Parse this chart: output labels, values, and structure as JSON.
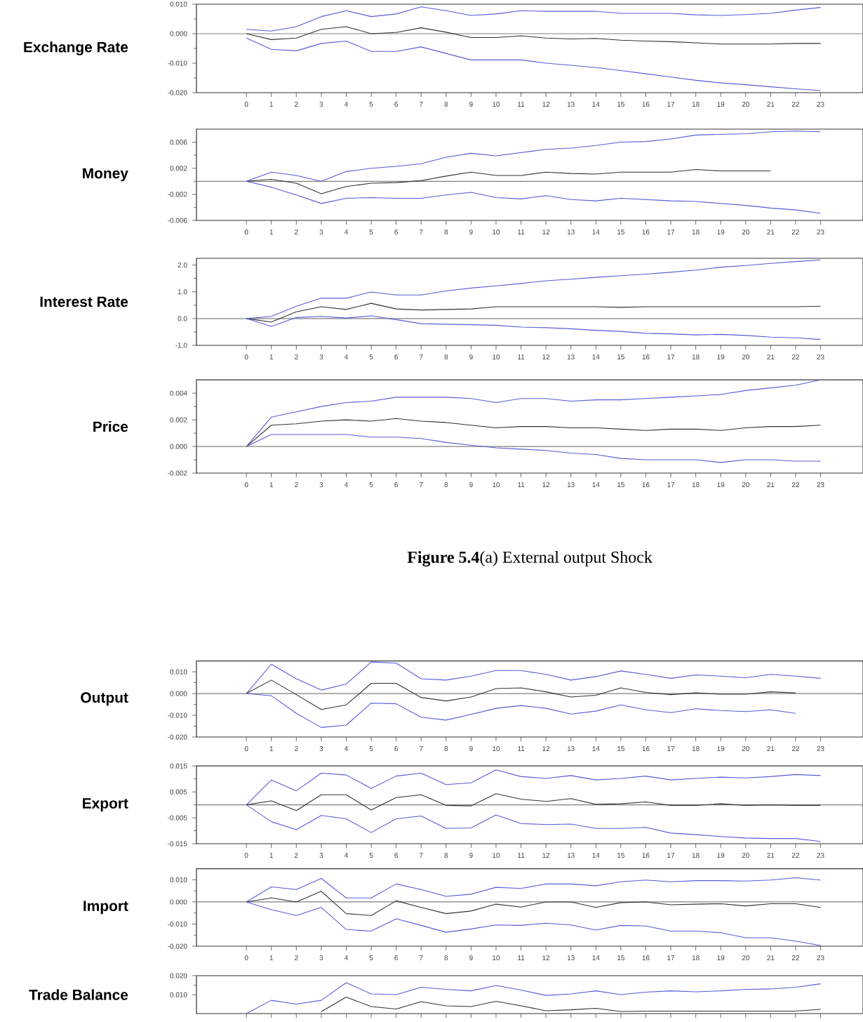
{
  "chart_data": [
    {
      "type": "line",
      "ylabel": "Exchange Rate",
      "x": [
        0,
        1,
        2,
        3,
        4,
        5,
        6,
        7,
        8,
        9,
        10,
        11,
        12,
        13,
        14,
        15,
        16,
        17,
        18,
        19,
        20,
        21,
        22,
        23
      ],
      "xlim": [
        -2,
        24.7
      ],
      "xticks": [
        0,
        1,
        2,
        3,
        4,
        5,
        6,
        7,
        8,
        9,
        10,
        11,
        12,
        13,
        14,
        15,
        16,
        17,
        18,
        19,
        20,
        21,
        22,
        23
      ],
      "ylim": [
        -0.02,
        0.01
      ],
      "yticks": [
        {
          "value": -0.02,
          "label": "-0.020"
        },
        {
          "value": -0.01,
          "label": "-0.010"
        },
        {
          "value": 0.0,
          "label": "0.000"
        },
        {
          "value": 0.01,
          "label": "0.010"
        }
      ],
      "ref_lines": [
        {
          "axis": "y",
          "value": 0,
          "color": "#808080"
        }
      ],
      "series": [
        {
          "color": "#5a5ad8",
          "values": [
            0.0015,
            0.0009,
            0.0024,
            0.0058,
            0.0078,
            0.0058,
            0.0067,
            0.0091,
            0.0078,
            0.0062,
            0.0067,
            0.0078,
            0.0076,
            0.0076,
            0.0076,
            0.0069,
            0.0069,
            0.0069,
            0.0064,
            0.0062,
            0.0065,
            0.0069,
            0.008,
            0.0089
          ]
        },
        {
          "color": "#333333",
          "values": [
            0,
            -0.002,
            -0.0015,
            0.0015,
            0.0024,
            0,
            0.0004,
            0.002,
            0.0005,
            -0.0013,
            -0.0013,
            -0.0007,
            -0.0015,
            -0.0018,
            -0.0016,
            -0.0022,
            -0.0025,
            -0.0027,
            -0.0031,
            -0.0035,
            -0.0035,
            -0.0035,
            -0.0033,
            -0.0033
          ]
        },
        {
          "color": "#5a5ad8",
          "values": [
            -0.0015,
            -0.0053,
            -0.0058,
            -0.0033,
            -0.0025,
            -0.006,
            -0.006,
            -0.0045,
            -0.0067,
            -0.0089,
            -0.0089,
            -0.0089,
            -0.01,
            -0.0107,
            -0.0115,
            -0.0125,
            -0.0136,
            -0.0147,
            -0.0158,
            -0.0167,
            -0.0173,
            -0.018,
            -0.0187,
            -0.0193
          ]
        }
      ]
    },
    {
      "type": "line",
      "ylabel": "Money",
      "x": [
        0,
        1,
        2,
        3,
        4,
        5,
        6,
        7,
        8,
        9,
        10,
        11,
        12,
        13,
        14,
        15,
        16,
        17,
        18,
        19,
        20,
        21,
        22,
        23
      ],
      "xlim": [
        -2,
        24.7
      ],
      "xticks": [
        0,
        1,
        2,
        3,
        4,
        5,
        6,
        7,
        8,
        9,
        10,
        11,
        12,
        13,
        14,
        15,
        16,
        17,
        18,
        19,
        20,
        21,
        22,
        23
      ],
      "ylim": [
        -0.006,
        0.008
      ],
      "yticks": [
        {
          "value": -0.006,
          "label": "-0.006"
        },
        {
          "value": -0.002,
          "label": "-0.002"
        },
        {
          "value": 0.002,
          "label": "0.002"
        },
        {
          "value": 0.006,
          "label": "0.006"
        }
      ],
      "ref_lines": [
        {
          "axis": "y",
          "value": 0,
          "color": "#808080"
        }
      ],
      "series": [
        {
          "color": "#5a5ad8",
          "values": [
            0,
            0.0014,
            0.0009,
            0,
            0.0015,
            0.002,
            0.0023,
            0.0027,
            0.0037,
            0.0043,
            0.0039,
            0.0044,
            0.0049,
            0.0051,
            0.0055,
            0.006,
            0.0061,
            0.0065,
            0.0071,
            0.0072,
            0.0073,
            0.0076,
            0.0077,
            0.0076
          ]
        },
        {
          "color": "#333333",
          "values": [
            0,
            0.0003,
            -0.0003,
            -0.0019,
            -0.0008,
            -0.0003,
            -0.0002,
            0.0001,
            0.0008,
            0.0014,
            0.0009,
            0.0009,
            0.0014,
            0.0012,
            0.0011,
            0.0014,
            0.0014,
            0.0014,
            0.0018,
            0.0016,
            0.0016,
            0.0016,
            null,
            null
          ]
        },
        {
          "color": "#5a5ad8",
          "values": [
            0,
            -0.0009,
            -0.0021,
            -0.0034,
            -0.0026,
            -0.0025,
            -0.0026,
            -0.0026,
            -0.0021,
            -0.0017,
            -0.0025,
            -0.0027,
            -0.0022,
            -0.0028,
            -0.003,
            -0.0026,
            -0.0028,
            -0.003,
            -0.0031,
            -0.0034,
            -0.0037,
            -0.0041,
            -0.0044,
            -0.0049
          ]
        }
      ]
    },
    {
      "type": "line",
      "ylabel": "Interest Rate",
      "x": [
        0,
        1,
        2,
        3,
        4,
        5,
        6,
        7,
        8,
        9,
        10,
        11,
        12,
        13,
        14,
        15,
        16,
        17,
        18,
        19,
        20,
        21,
        22,
        23
      ],
      "xlim": [
        -2,
        24.7
      ],
      "xticks": [
        0,
        1,
        2,
        3,
        4,
        5,
        6,
        7,
        8,
        9,
        10,
        11,
        12,
        13,
        14,
        15,
        16,
        17,
        18,
        19,
        20,
        21,
        22,
        23
      ],
      "ylim": [
        -1.0,
        2.25
      ],
      "yticks": [
        {
          "value": -1.0,
          "label": "-1.0"
        },
        {
          "value": 0.0,
          "label": "0.0"
        },
        {
          "value": 1.0,
          "label": "1.0"
        },
        {
          "value": 2.0,
          "label": "2.0"
        }
      ],
      "ref_lines": [
        {
          "axis": "y",
          "value": 0,
          "color": "#808080"
        }
      ],
      "series": [
        {
          "color": "#5a5ad8",
          "values": [
            0,
            0.08,
            0.46,
            0.76,
            0.76,
            0.99,
            0.88,
            0.88,
            1.03,
            1.14,
            1.22,
            1.31,
            1.41,
            1.47,
            1.54,
            1.6,
            1.66,
            1.73,
            1.81,
            1.92,
            1.98,
            2.06,
            2.13,
            2.19
          ]
        },
        {
          "color": "#333333",
          "values": [
            0,
            -0.13,
            0.25,
            0.44,
            0.34,
            0.57,
            0.36,
            0.32,
            0.34,
            0.36,
            0.44,
            0.44,
            0.44,
            0.44,
            0.44,
            0.42,
            0.44,
            0.44,
            0.44,
            0.44,
            0.44,
            0.44,
            0.44,
            0.46
          ]
        },
        {
          "color": "#5a5ad8",
          "values": [
            0,
            -0.29,
            0.04,
            0.08,
            0.02,
            0.1,
            -0.04,
            -0.19,
            -0.21,
            -0.23,
            -0.25,
            -0.32,
            -0.34,
            -0.38,
            -0.44,
            -0.48,
            -0.55,
            -0.57,
            -0.61,
            -0.59,
            -0.63,
            -0.69,
            -0.72,
            -0.78
          ]
        }
      ]
    },
    {
      "type": "line",
      "ylabel": "Price",
      "x": [
        0,
        1,
        2,
        3,
        4,
        5,
        6,
        7,
        8,
        9,
        10,
        11,
        12,
        13,
        14,
        15,
        16,
        17,
        18,
        19,
        20,
        21,
        22,
        23
      ],
      "xlim": [
        -2,
        24.7
      ],
      "xticks": [
        0,
        1,
        2,
        3,
        4,
        5,
        6,
        7,
        8,
        9,
        10,
        11,
        12,
        13,
        14,
        15,
        16,
        17,
        18,
        19,
        20,
        21,
        22,
        23
      ],
      "ylim": [
        -0.002,
        0.005
      ],
      "yticks": [
        {
          "value": -0.002,
          "label": "-0.002"
        },
        {
          "value": 0.0,
          "label": "0.000"
        },
        {
          "value": 0.002,
          "label": "0.002"
        },
        {
          "value": 0.004,
          "label": "0.004"
        }
      ],
      "ref_lines": [
        {
          "axis": "y",
          "value": 0,
          "color": "#808080"
        }
      ],
      "annotations": [
        "**Figure 5.4**(a) External output Shock"
      ],
      "series": [
        {
          "color": "#5a5ad8",
          "values": [
            0,
            0.0022,
            0.0026,
            0.003,
            0.0033,
            0.0034,
            0.0037,
            0.0037,
            0.0037,
            0.0036,
            0.0033,
            0.0036,
            0.0036,
            0.0034,
            0.0035,
            0.0035,
            0.0036,
            0.0037,
            0.0038,
            0.0039,
            0.0042,
            0.0044,
            0.0046,
            0.005
          ]
        },
        {
          "color": "#333333",
          "values": [
            0,
            0.0016,
            0.0017,
            0.0019,
            0.002,
            0.0019,
            0.0021,
            0.0019,
            0.0018,
            0.0016,
            0.0014,
            0.0015,
            0.0015,
            0.0014,
            0.0014,
            0.0013,
            0.0012,
            0.0013,
            0.0013,
            0.0012,
            0.0014,
            0.0015,
            0.0015,
            0.0016
          ]
        },
        {
          "color": "#5a5ad8",
          "values": [
            0,
            0.0009,
            0.0009,
            0.0009,
            0.0009,
            0.0007,
            0.0007,
            0.0006,
            0.0003,
            0.0001,
            -0.0001,
            -0.0002,
            -0.0003,
            -0.0005,
            -0.0006,
            -0.0009,
            -0.001,
            -0.001,
            -0.001,
            -0.0012,
            -0.001,
            -0.001,
            -0.0011,
            -0.0011
          ]
        }
      ]
    },
    {
      "type": "line",
      "ylabel": "Output",
      "x": [
        0,
        1,
        2,
        3,
        4,
        5,
        6,
        7,
        8,
        9,
        10,
        11,
        12,
        13,
        14,
        15,
        16,
        17,
        18,
        19,
        20,
        21,
        22,
        23
      ],
      "xlim": [
        -2,
        24.7
      ],
      "xticks": [
        0,
        1,
        2,
        3,
        4,
        5,
        6,
        7,
        8,
        9,
        10,
        11,
        12,
        13,
        14,
        15,
        16,
        17,
        18,
        19,
        20,
        21,
        22,
        23
      ],
      "ylim": [
        -0.02,
        0.015
      ],
      "yticks": [
        {
          "value": -0.02,
          "label": "-0.020"
        },
        {
          "value": -0.01,
          "label": "-0.010"
        },
        {
          "value": 0.0,
          "label": "0.000"
        },
        {
          "value": 0.01,
          "label": "0.010"
        }
      ],
      "ref_lines": [
        {
          "axis": "y",
          "value": 0,
          "color": "#808080"
        }
      ],
      "series": [
        {
          "color": "#5a5ad8",
          "values": [
            0,
            0.0135,
            0.0068,
            0.0016,
            0.0044,
            0.0145,
            0.014,
            0.0068,
            0.0062,
            0.008,
            0.0106,
            0.0106,
            0.0088,
            0.0062,
            0.0078,
            0.0104,
            0.0088,
            0.007,
            0.0086,
            0.008,
            0.0073,
            0.0088,
            0.008,
            0.007
          ]
        },
        {
          "color": "#333333",
          "values": [
            0,
            0.0062,
            -0.0005,
            -0.0073,
            -0.0052,
            0.0047,
            0.0047,
            -0.0018,
            -0.0034,
            -0.0016,
            0.0023,
            0.0026,
            0.0008,
            -0.0016,
            -0.0008,
            0.0026,
            0.0005,
            -0.0005,
            0.0003,
            -0.0003,
            -0.0003,
            0.0008,
            0.0003,
            null
          ]
        },
        {
          "color": "#5a5ad8",
          "values": [
            0,
            -0.001,
            -0.0091,
            -0.0156,
            -0.0145,
            -0.0044,
            -0.0047,
            -0.0109,
            -0.0122,
            -0.0096,
            -0.0068,
            -0.0055,
            -0.0068,
            -0.0094,
            -0.0081,
            -0.0052,
            -0.0075,
            -0.0088,
            -0.007,
            -0.0078,
            -0.0083,
            -0.0075,
            -0.0091,
            null
          ]
        }
      ]
    },
    {
      "type": "line",
      "ylabel": "Export",
      "x": [
        0,
        1,
        2,
        3,
        4,
        5,
        6,
        7,
        8,
        9,
        10,
        11,
        12,
        13,
        14,
        15,
        16,
        17,
        18,
        19,
        20,
        21,
        22,
        23
      ],
      "xlim": [
        -2,
        24.7
      ],
      "xticks": [
        0,
        1,
        2,
        3,
        4,
        5,
        6,
        7,
        8,
        9,
        10,
        11,
        12,
        13,
        14,
        15,
        16,
        17,
        18,
        19,
        20,
        21,
        22,
        23
      ],
      "ylim": [
        -0.015,
        0.015
      ],
      "yticks": [
        {
          "value": -0.015,
          "label": "-0.015"
        },
        {
          "value": -0.005,
          "label": "-0.005"
        },
        {
          "value": 0.005,
          "label": "0.005"
        },
        {
          "value": 0.015,
          "label": "0.015"
        }
      ],
      "ref_lines": [
        {
          "axis": "y",
          "value": 0,
          "color": "#808080"
        }
      ],
      "series": [
        {
          "color": "#5a5ad8",
          "values": [
            0,
            0.0096,
            0.0054,
            0.0122,
            0.0115,
            0.0063,
            0.0111,
            0.0122,
            0.0078,
            0.0085,
            0.0135,
            0.0109,
            0.0102,
            0.0113,
            0.0096,
            0.0102,
            0.0111,
            0.0096,
            0.0102,
            0.0107,
            0.0104,
            0.0109,
            0.0117,
            0.0113
          ]
        },
        {
          "color": "#333333",
          "values": [
            0,
            0.0015,
            -0.0022,
            0.0039,
            0.0039,
            -0.002,
            0.0028,
            0.0039,
            -0.0002,
            -0.0004,
            0.0043,
            0.0022,
            0.0013,
            0.0024,
            0.0002,
            0.0004,
            0.0011,
            -0.0002,
            -0.0002,
            0.0004,
            -0.0002,
            0,
            -0.0002,
            -0.0002
          ]
        },
        {
          "color": "#5a5ad8",
          "values": [
            0,
            -0.0065,
            -0.0096,
            -0.0041,
            -0.0054,
            -0.0107,
            -0.0054,
            -0.0043,
            -0.0091,
            -0.0089,
            -0.0039,
            -0.0072,
            -0.0076,
            -0.0074,
            -0.0091,
            -0.0091,
            -0.0087,
            -0.0109,
            -0.0115,
            -0.0122,
            -0.0128,
            -0.013,
            -0.013,
            -0.0141
          ]
        }
      ]
    },
    {
      "type": "line",
      "ylabel": "Import",
      "x": [
        0,
        1,
        2,
        3,
        4,
        5,
        6,
        7,
        8,
        9,
        10,
        11,
        12,
        13,
        14,
        15,
        16,
        17,
        18,
        19,
        20,
        21,
        22,
        23
      ],
      "xlim": [
        -2,
        24.7
      ],
      "xticks": [
        0,
        1,
        2,
        3,
        4,
        5,
        6,
        7,
        8,
        9,
        10,
        11,
        12,
        13,
        14,
        15,
        16,
        17,
        18,
        19,
        20,
        21,
        22,
        23
      ],
      "ylim": [
        -0.02,
        0.015
      ],
      "yticks": [
        {
          "value": -0.02,
          "label": "-0.020"
        },
        {
          "value": -0.01,
          "label": "-0.010"
        },
        {
          "value": 0.0,
          "label": "0.000"
        },
        {
          "value": 0.01,
          "label": "0.010"
        }
      ],
      "ref_lines": [
        {
          "axis": "y",
          "value": 0,
          "color": "#808080"
        }
      ],
      "series": [
        {
          "color": "#5a5ad8",
          "values": [
            0,
            0.0068,
            0.0056,
            0.0106,
            0.0018,
            0.0018,
            0.0081,
            0.0056,
            0.0025,
            0.0035,
            0.0066,
            0.0061,
            0.0081,
            0.0081,
            0.0073,
            0.0091,
            0.0099,
            0.0091,
            0.0096,
            0.0096,
            0.0094,
            0.0099,
            0.0109,
            0.0099
          ]
        },
        {
          "color": "#333333",
          "values": [
            0,
            0.0018,
            0,
            0.0048,
            -0.0053,
            -0.0061,
            0.0005,
            -0.0025,
            -0.0053,
            -0.0041,
            -0.001,
            -0.0023,
            0,
            0,
            -0.0025,
            -0.0003,
            0,
            -0.0013,
            -0.001,
            -0.0008,
            -0.0018,
            -0.0008,
            -0.0008,
            -0.0025
          ]
        },
        {
          "color": "#5a5ad8",
          "values": [
            0,
            -0.0035,
            -0.0061,
            -0.0025,
            -0.0124,
            -0.0132,
            -0.0076,
            -0.0106,
            -0.0137,
            -0.0122,
            -0.0104,
            -0.0106,
            -0.0096,
            -0.0104,
            -0.0127,
            -0.0106,
            -0.0109,
            -0.0132,
            -0.0132,
            -0.0139,
            -0.0162,
            -0.0162,
            -0.0177,
            -0.0197
          ]
        }
      ]
    },
    {
      "type": "line",
      "ylabel": "Trade Balance",
      "tick_labels": "y",
      "x": [
        0,
        1,
        2,
        3,
        4,
        5,
        6,
        7,
        8,
        9,
        10,
        11,
        12,
        13,
        14,
        15,
        16,
        17,
        18,
        19,
        20,
        21,
        22,
        23
      ],
      "xlim": [
        -2,
        24.7
      ],
      "xticks": [
        0,
        1,
        2,
        3,
        4,
        5,
        6,
        7,
        8,
        9,
        10,
        11,
        12,
        13,
        14,
        15,
        16,
        17,
        18,
        19,
        20,
        21,
        22,
        23
      ],
      "ylim": [
        0.0,
        0.02
      ],
      "yticks": [
        {
          "value": 0.01,
          "label": "0.010"
        },
        {
          "value": 0.02,
          "label": "0.020"
        }
      ],
      "series": [
        {
          "color": "#5a5ad8",
          "values": [
            0,
            0.007,
            0.005,
            0.007,
            0.0163,
            0.0104,
            0.01,
            0.0139,
            0.0128,
            0.012,
            0.0148,
            0.0124,
            0.0096,
            0.0104,
            0.012,
            0.01,
            0.0113,
            0.012,
            0.0115,
            0.012,
            0.0128,
            0.013,
            0.0139,
            0.0157
          ]
        },
        {
          "color": "#333333",
          "values": [
            null,
            null,
            null,
            0.001,
            0.0087,
            0.0037,
            0.0024,
            0.0063,
            0.0041,
            0.0037,
            0.0065,
            0.0041,
            0.0015,
            0.002,
            0.0028,
            0.0011,
            0.0013,
            0.0013,
            0.0013,
            0.0013,
            0.0013,
            0.0013,
            0.0013,
            0.0022
          ]
        }
      ]
    }
  ]
}
